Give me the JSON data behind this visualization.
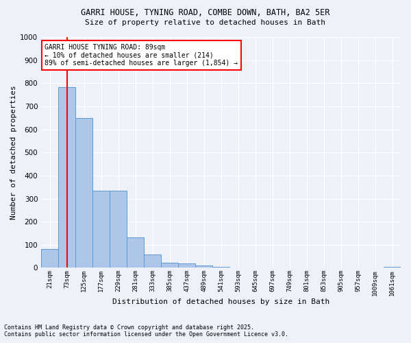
{
  "title1": "GARRI HOUSE, TYNING ROAD, COMBE DOWN, BATH, BA2 5ER",
  "title2": "Size of property relative to detached houses in Bath",
  "xlabel": "Distribution of detached houses by size in Bath",
  "ylabel": "Number of detached properties",
  "bar_labels": [
    "21sqm",
    "73sqm",
    "125sqm",
    "177sqm",
    "229sqm",
    "281sqm",
    "333sqm",
    "385sqm",
    "437sqm",
    "489sqm",
    "541sqm",
    "593sqm",
    "645sqm",
    "697sqm",
    "749sqm",
    "801sqm",
    "853sqm",
    "905sqm",
    "957sqm",
    "1009sqm",
    "1061sqm"
  ],
  "bar_values": [
    83,
    783,
    648,
    333,
    333,
    133,
    58,
    22,
    18,
    10,
    5,
    2,
    1,
    0,
    0,
    0,
    0,
    0,
    0,
    0,
    3
  ],
  "bar_color": "#aec6e8",
  "bar_edge_color": "#5b9bd5",
  "vline_x": 1,
  "vline_color": "red",
  "annotation_title": "GARRI HOUSE TYNING ROAD: 89sqm",
  "annotation_line1": "← 10% of detached houses are smaller (214)",
  "annotation_line2": "89% of semi-detached houses are larger (1,854) →",
  "annotation_box_color": "white",
  "annotation_box_edge": "red",
  "ylim": [
    0,
    1000
  ],
  "yticks": [
    0,
    100,
    200,
    300,
    400,
    500,
    600,
    700,
    800,
    900,
    1000
  ],
  "footnote1": "Contains HM Land Registry data © Crown copyright and database right 2025.",
  "footnote2": "Contains public sector information licensed under the Open Government Licence v3.0.",
  "bg_color": "#eef2f8"
}
